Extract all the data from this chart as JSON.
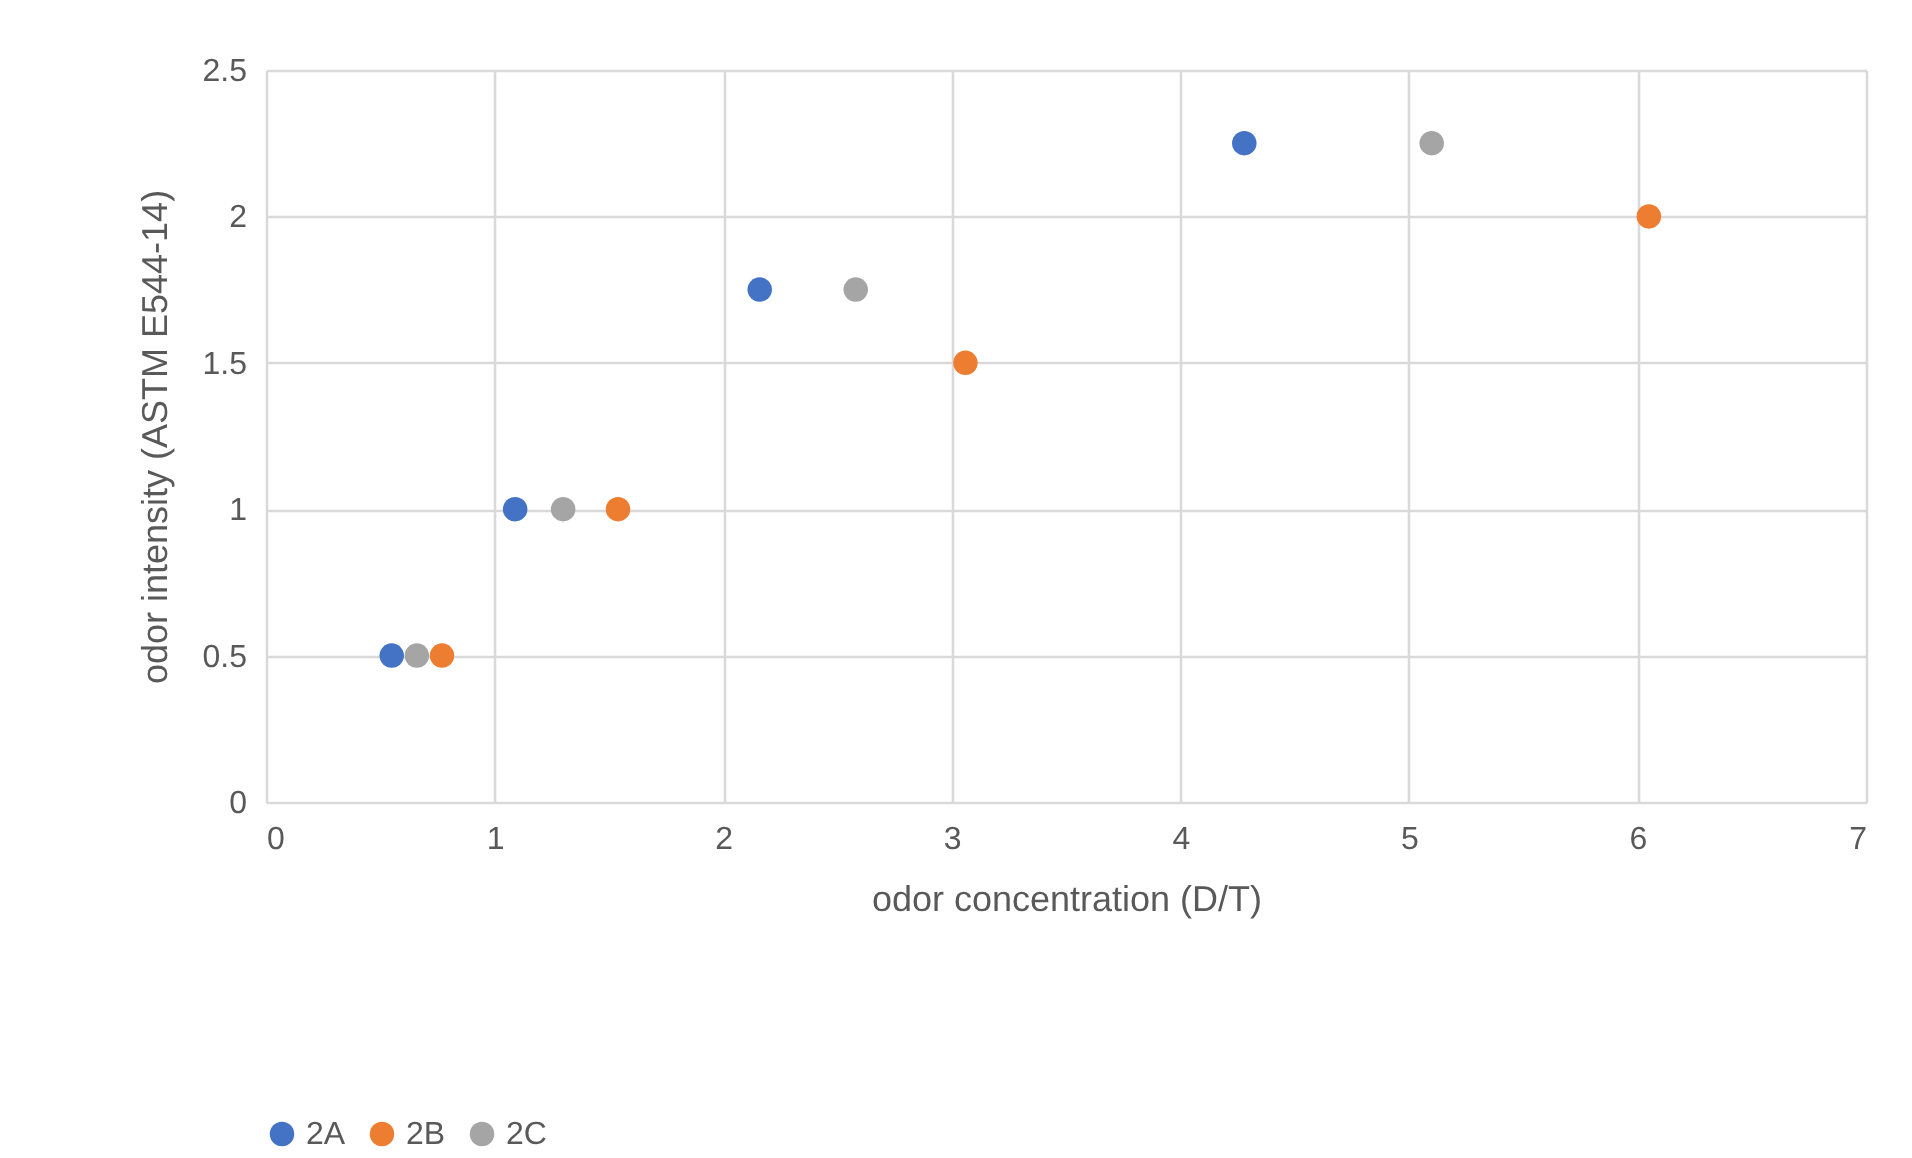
{
  "chart_data": {
    "type": "scatter",
    "xlabel": "odor concentration (D/T)",
    "ylabel": "odor intensity (ASTM E544-14)",
    "xlim": [
      0,
      7
    ],
    "xticks": [
      0,
      1,
      2,
      3,
      4,
      5,
      6,
      7
    ],
    "ylim": [
      0,
      2.5
    ],
    "yticks": [
      0,
      0.5,
      1,
      1.5,
      2,
      2.5
    ],
    "grid": true,
    "legend": "bottom",
    "marker": "circle",
    "series": [
      {
        "name": "2A",
        "color": "#4472c4",
        "x": [
          0.55,
          1.09,
          2.16,
          4.28
        ],
        "values": [
          0.5,
          1,
          1.75,
          2.25
        ]
      },
      {
        "name": "2B",
        "color": "#ed7d31",
        "x": [
          0.77,
          1.54,
          3.06,
          6.05
        ],
        "values": [
          0.5,
          1,
          1.5,
          2
        ]
      },
      {
        "name": "2C",
        "color": "#a5a5a5",
        "x": [
          0.66,
          1.3,
          2.58,
          5.1
        ],
        "values": [
          0.5,
          1,
          1.75,
          2.25
        ]
      }
    ]
  }
}
